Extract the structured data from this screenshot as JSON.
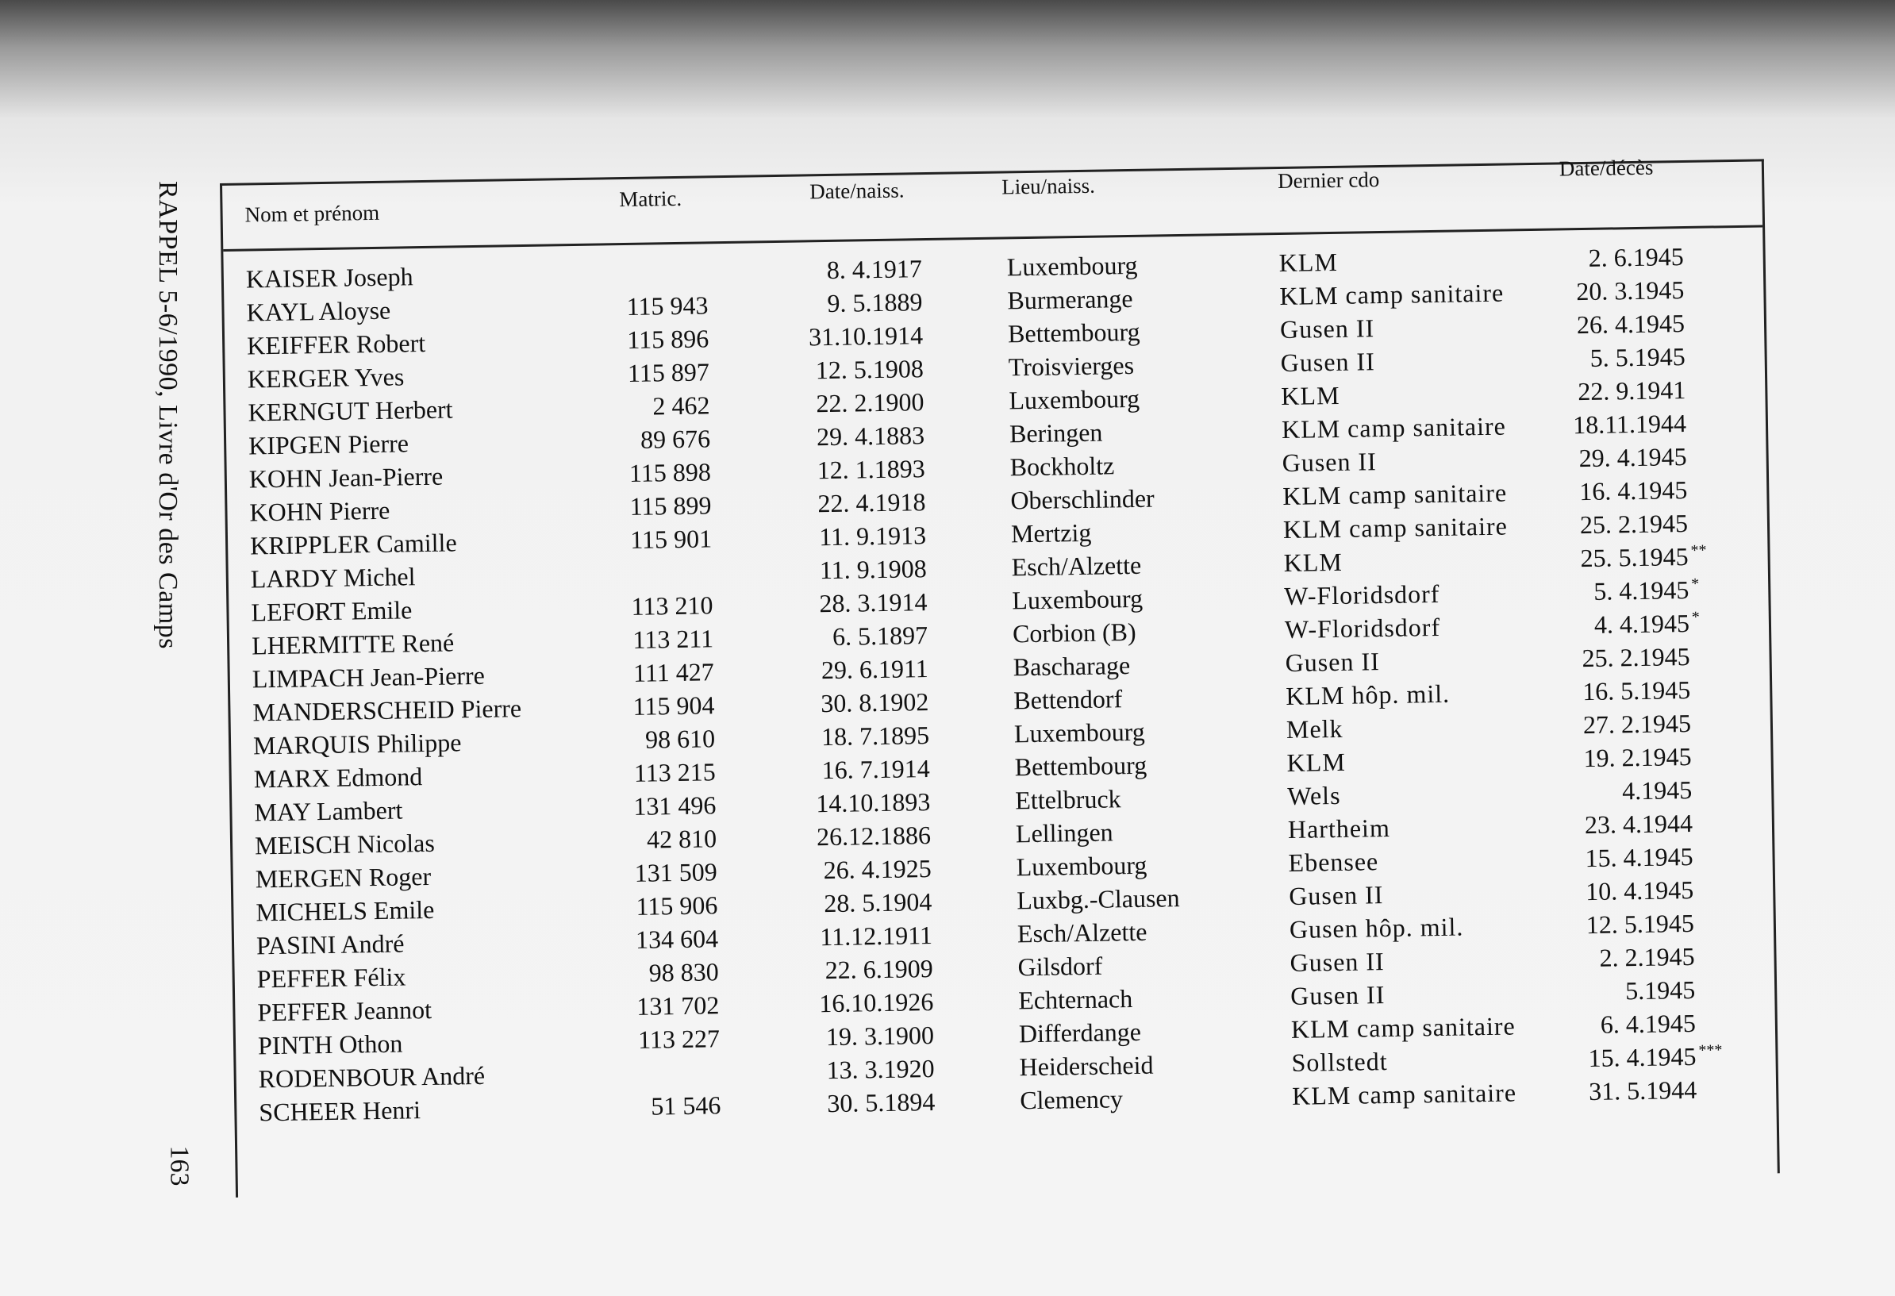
{
  "side_title": "RAPPEL 5-6/1990, Livre d'Or des Camps",
  "page_number": "163",
  "columns": [
    "Nom et prénom",
    "Matric.",
    "Date/naiss.",
    "Lieu/naiss.",
    "Dernier cdo",
    "Date/décès"
  ],
  "rows": [
    {
      "name": "KAISER Joseph",
      "matric": "",
      "dob": "8. 4.1917",
      "pob": "Luxembourg",
      "cdo": "KLM",
      "dod": "2. 6.1945",
      "note": ""
    },
    {
      "name": "KAYL Aloyse",
      "matric": "115 943",
      "dob": "9. 5.1889",
      "pob": "Burmerange",
      "cdo": "KLM camp sanitaire",
      "dod": "20. 3.1945",
      "note": ""
    },
    {
      "name": "KEIFFER Robert",
      "matric": "115 896",
      "dob": "31.10.1914",
      "pob": "Bettembourg",
      "cdo": "Gusen II",
      "dod": "26. 4.1945",
      "note": ""
    },
    {
      "name": "KERGER Yves",
      "matric": "115 897",
      "dob": "12. 5.1908",
      "pob": "Troisvierges",
      "cdo": "Gusen II",
      "dod": "5. 5.1945",
      "note": ""
    },
    {
      "name": "KERNGUT Herbert",
      "matric": "2 462",
      "dob": "22. 2.1900",
      "pob": "Luxembourg",
      "cdo": "KLM",
      "dod": "22. 9.1941",
      "note": ""
    },
    {
      "name": "KIPGEN Pierre",
      "matric": "89 676",
      "dob": "29. 4.1883",
      "pob": "Beringen",
      "cdo": "KLM camp sanitaire",
      "dod": "18.11.1944",
      "note": ""
    },
    {
      "name": "KOHN Jean-Pierre",
      "matric": "115 898",
      "dob": "12. 1.1893",
      "pob": "Bockholtz",
      "cdo": "Gusen II",
      "dod": "29. 4.1945",
      "note": ""
    },
    {
      "name": "KOHN Pierre",
      "matric": "115 899",
      "dob": "22. 4.1918",
      "pob": "Oberschlinder",
      "cdo": "KLM camp sanitaire",
      "dod": "16. 4.1945",
      "note": ""
    },
    {
      "name": "KRIPPLER Camille",
      "matric": "115 901",
      "dob": "11. 9.1913",
      "pob": "Mertzig",
      "cdo": "KLM camp sanitaire",
      "dod": "25. 2.1945",
      "note": ""
    },
    {
      "name": "LARDY Michel",
      "matric": "",
      "dob": "11. 9.1908",
      "pob": "Esch/Alzette",
      "cdo": "KLM",
      "dod": "25. 5.1945",
      "note": "**"
    },
    {
      "name": "LEFORT Emile",
      "matric": "113 210",
      "dob": "28. 3.1914",
      "pob": "Luxembourg",
      "cdo": "W-Floridsdorf",
      "dod": "5. 4.1945",
      "note": "*"
    },
    {
      "name": "LHERMITTE René",
      "matric": "113 211",
      "dob": "6. 5.1897",
      "pob": "Corbion (B)",
      "cdo": "W-Floridsdorf",
      "dod": "4. 4.1945",
      "note": "*"
    },
    {
      "name": "LIMPACH Jean-Pierre",
      "matric": "111 427",
      "dob": "29. 6.1911",
      "pob": "Bascharage",
      "cdo": "Gusen II",
      "dod": "25. 2.1945",
      "note": ""
    },
    {
      "name": "MANDERSCHEID Pierre",
      "matric": "115 904",
      "dob": "30. 8.1902",
      "pob": "Bettendorf",
      "cdo": "KLM hôp. mil.",
      "dod": "16. 5.1945",
      "note": ""
    },
    {
      "name": "MARQUIS Philippe",
      "matric": "98 610",
      "dob": "18. 7.1895",
      "pob": "Luxembourg",
      "cdo": "Melk",
      "dod": "27. 2.1945",
      "note": ""
    },
    {
      "name": "MARX Edmond",
      "matric": "113 215",
      "dob": "16. 7.1914",
      "pob": "Bettembourg",
      "cdo": "KLM",
      "dod": "19. 2.1945",
      "note": ""
    },
    {
      "name": "MAY Lambert",
      "matric": "131 496",
      "dob": "14.10.1893",
      "pob": "Ettelbruck",
      "cdo": "Wels",
      "dod": "4.1945",
      "note": ""
    },
    {
      "name": "MEISCH Nicolas",
      "matric": "42 810",
      "dob": "26.12.1886",
      "pob": "Lellingen",
      "cdo": "Hartheim",
      "dod": "23. 4.1944",
      "note": ""
    },
    {
      "name": "MERGEN Roger",
      "matric": "131 509",
      "dob": "26. 4.1925",
      "pob": "Luxembourg",
      "cdo": "Ebensee",
      "dod": "15. 4.1945",
      "note": ""
    },
    {
      "name": "MICHELS Emile",
      "matric": "115 906",
      "dob": "28. 5.1904",
      "pob": "Luxbg.-Clausen",
      "cdo": "Gusen II",
      "dod": "10. 4.1945",
      "note": ""
    },
    {
      "name": "PASINI André",
      "matric": "134 604",
      "dob": "11.12.1911",
      "pob": "Esch/Alzette",
      "cdo": "Gusen hôp. mil.",
      "dod": "12. 5.1945",
      "note": ""
    },
    {
      "name": "PEFFER Félix",
      "matric": "98 830",
      "dob": "22. 6.1909",
      "pob": "Gilsdorf",
      "cdo": "Gusen II",
      "dod": "2. 2.1945",
      "note": ""
    },
    {
      "name": "PEFFER Jeannot",
      "matric": "131 702",
      "dob": "16.10.1926",
      "pob": "Echternach",
      "cdo": "Gusen II",
      "dod": "5.1945",
      "note": ""
    },
    {
      "name": "PINTH Othon",
      "matric": "113 227",
      "dob": "19. 3.1900",
      "pob": "Differdange",
      "cdo": "KLM camp sanitaire",
      "dod": "6. 4.1945",
      "note": ""
    },
    {
      "name": "RODENBOUR André",
      "matric": "",
      "dob": "13. 3.1920",
      "pob": "Heiderscheid",
      "cdo": "Sollstedt",
      "dod": "15. 4.1945",
      "note": "***"
    },
    {
      "name": "SCHEER Henri",
      "matric": "51 546",
      "dob": "30. 5.1894",
      "pob": "Clemency",
      "cdo": "KLM camp sanitaire",
      "dod": "31. 5.1944",
      "note": ""
    }
  ]
}
